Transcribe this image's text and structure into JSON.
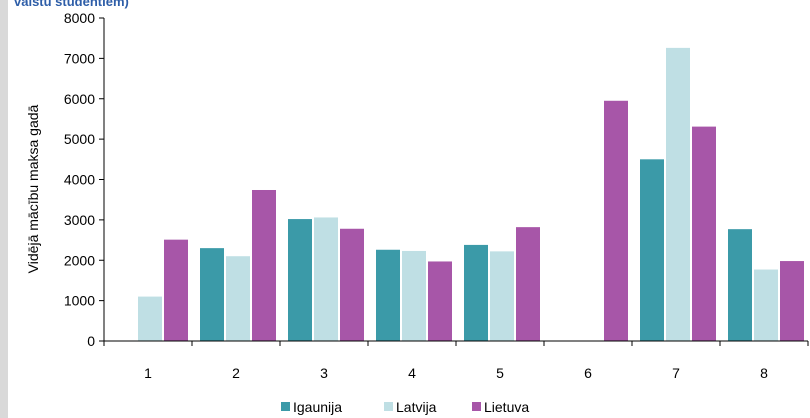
{
  "chart_data": {
    "type": "bar",
    "title": "valstu studentiem)",
    "ylabel": "Vidējā  mācību maksa gadā",
    "xlabel": "",
    "categories": [
      "1",
      "2",
      "3",
      "4",
      "5",
      "6",
      "7",
      "8"
    ],
    "ylim": [
      0,
      8000
    ],
    "yticks": [
      0,
      1000,
      2000,
      3000,
      4000,
      5000,
      6000,
      7000,
      8000
    ],
    "grid": false,
    "legend_position": "bottom",
    "series": [
      {
        "name": "Igaunija",
        "color": "#3b9aa8",
        "values": [
          0,
          2300,
          3020,
          2260,
          2380,
          0,
          4500,
          2770
        ]
      },
      {
        "name": "Latvija",
        "color": "#bfdfe4",
        "values": [
          1100,
          2100,
          3060,
          2230,
          2220,
          0,
          7260,
          1770
        ]
      },
      {
        "name": "Lietuva",
        "color": "#a756a8",
        "values": [
          2510,
          3740,
          2780,
          1970,
          2820,
          5950,
          5310,
          1980
        ]
      }
    ]
  }
}
